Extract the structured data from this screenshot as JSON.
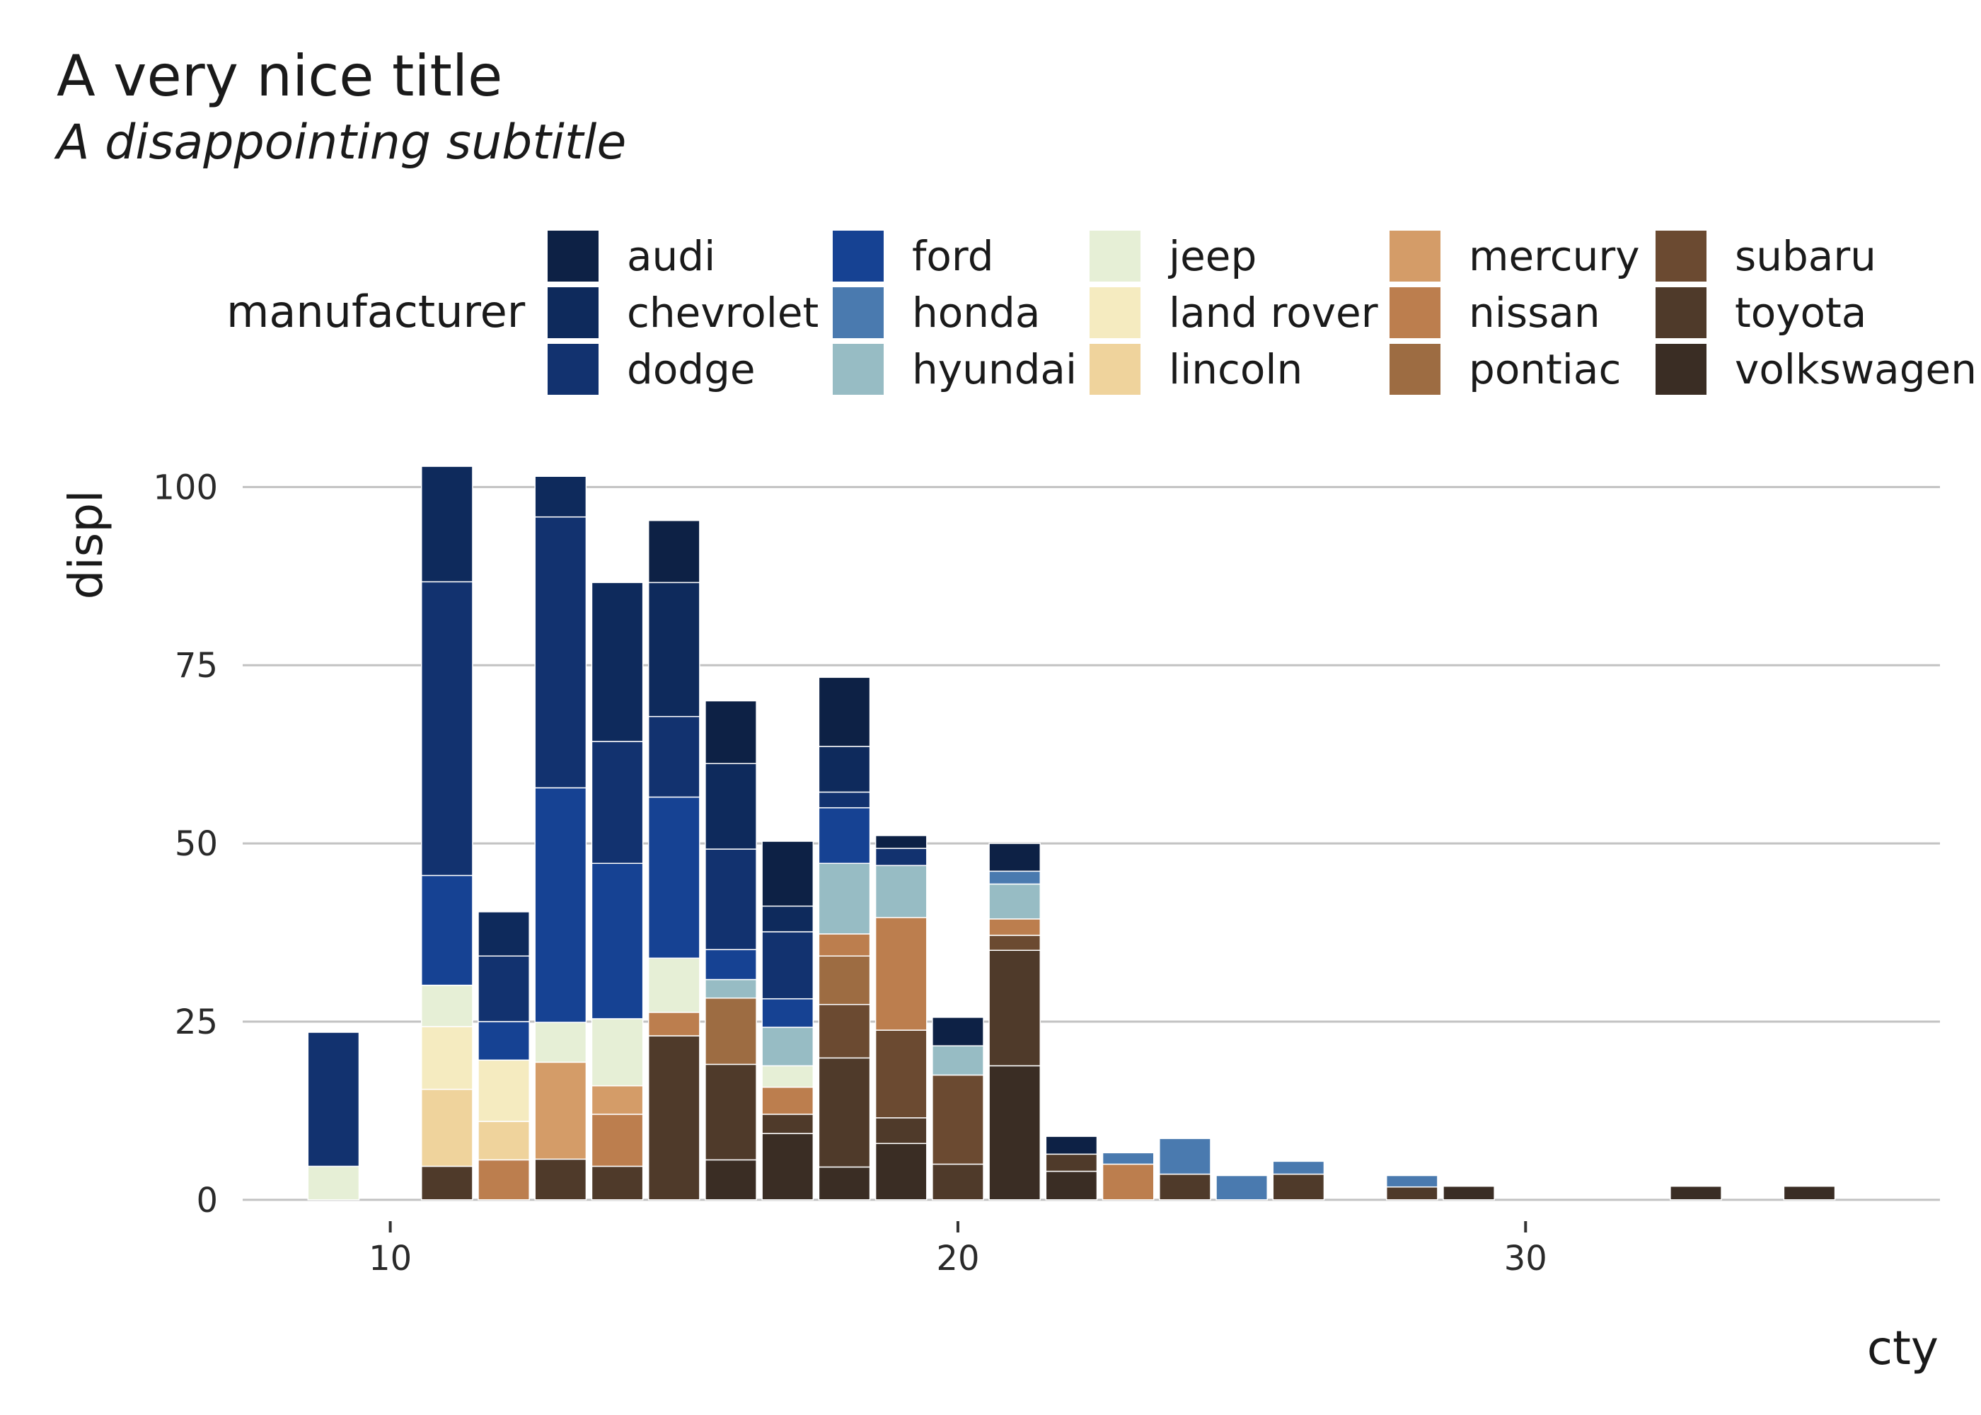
{
  "chart_data": {
    "type": "bar",
    "stacked": true,
    "title": "A very nice title",
    "subtitle": "A disappointing subtitle",
    "xlabel": "cty",
    "ylabel": "displ",
    "xlim": [
      7.4,
      37.3
    ],
    "ylim": [
      -2.5,
      104.5
    ],
    "xticks": [
      10,
      20,
      30
    ],
    "yticks": [
      0,
      25,
      50,
      75,
      100
    ],
    "bar_width": 0.9,
    "grid": "horizontal-major",
    "legend": {
      "title": "manufacturer",
      "placement": "top",
      "columns": 5,
      "entries": [
        {
          "name": "audi",
          "color": "#0d2145"
        },
        {
          "name": "chevrolet",
          "color": "#0e2a5c"
        },
        {
          "name": "dodge",
          "color": "#12326f"
        },
        {
          "name": "ford",
          "color": "#164293"
        },
        {
          "name": "honda",
          "color": "#4a7aaf"
        },
        {
          "name": "hyundai",
          "color": "#97bcc4"
        },
        {
          "name": "jeep",
          "color": "#e6efd6"
        },
        {
          "name": "land rover",
          "color": "#f5ebc0"
        },
        {
          "name": "lincoln",
          "color": "#efd39c"
        },
        {
          "name": "mercury",
          "color": "#d49c68"
        },
        {
          "name": "nissan",
          "color": "#bc7e4e"
        },
        {
          "name": "pontiac",
          "color": "#9d6c42"
        },
        {
          "name": "subaru",
          "color": "#6b4a31"
        },
        {
          "name": "toyota",
          "color": "#4f3a2a"
        },
        {
          "name": "volkswagen",
          "color": "#3a2d24"
        }
      ]
    },
    "bars": [
      {
        "x": 9,
        "segments": [
          {
            "m": "jeep",
            "value": 4.7
          },
          {
            "m": "dodge",
            "value": 18.8
          }
        ]
      },
      {
        "x": 11,
        "segments": [
          {
            "m": "toyota",
            "value": 4.7
          },
          {
            "m": "lincoln",
            "value": 10.8
          },
          {
            "m": "land rover",
            "value": 8.8
          },
          {
            "m": "jeep",
            "value": 5.8
          },
          {
            "m": "ford",
            "value": 15.4
          },
          {
            "m": "dodge",
            "value": 41.2
          },
          {
            "m": "chevrolet",
            "value": 16.2
          }
        ]
      },
      {
        "x": 12,
        "segments": [
          {
            "m": "nissan",
            "value": 5.6
          },
          {
            "m": "lincoln",
            "value": 5.4
          },
          {
            "m": "land rover",
            "value": 8.6
          },
          {
            "m": "ford",
            "value": 5.4
          },
          {
            "m": "dodge",
            "value": 9.2
          },
          {
            "m": "chevrolet",
            "value": 6.2
          }
        ]
      },
      {
        "x": 13,
        "segments": [
          {
            "m": "toyota",
            "value": 5.7
          },
          {
            "m": "mercury",
            "value": 13.6
          },
          {
            "m": "jeep",
            "value": 5.6
          },
          {
            "m": "ford",
            "value": 32.9
          },
          {
            "m": "dodge",
            "value": 38.0
          },
          {
            "m": "chevrolet",
            "value": 5.7
          }
        ]
      },
      {
        "x": 14,
        "segments": [
          {
            "m": "toyota",
            "value": 4.7
          },
          {
            "m": "nissan",
            "value": 7.3
          },
          {
            "m": "mercury",
            "value": 4.0
          },
          {
            "m": "jeep",
            "value": 9.4
          },
          {
            "m": "ford",
            "value": 21.8
          },
          {
            "m": "dodge",
            "value": 17.1
          },
          {
            "m": "chevrolet",
            "value": 22.3
          }
        ]
      },
      {
        "x": 15,
        "segments": [
          {
            "m": "toyota",
            "value": 23.0
          },
          {
            "m": "nissan",
            "value": 3.3
          },
          {
            "m": "jeep",
            "value": 7.6
          },
          {
            "m": "ford",
            "value": 22.6
          },
          {
            "m": "dodge",
            "value": 11.3
          },
          {
            "m": "chevrolet",
            "value": 18.8
          },
          {
            "m": "audi",
            "value": 8.7
          }
        ]
      },
      {
        "x": 16,
        "segments": [
          {
            "m": "volkswagen",
            "value": 5.6
          },
          {
            "m": "toyota",
            "value": 13.4
          },
          {
            "m": "pontiac",
            "value": 9.3
          },
          {
            "m": "hyundai",
            "value": 2.6
          },
          {
            "m": "ford",
            "value": 4.2
          },
          {
            "m": "dodge",
            "value": 14.1
          },
          {
            "m": "chevrolet",
            "value": 12.0
          },
          {
            "m": "audi",
            "value": 8.8
          }
        ]
      },
      {
        "x": 17,
        "segments": [
          {
            "m": "volkswagen",
            "value": 9.3
          },
          {
            "m": "toyota",
            "value": 2.7
          },
          {
            "m": "nissan",
            "value": 3.8
          },
          {
            "m": "jeep",
            "value": 3.0
          },
          {
            "m": "hyundai",
            "value": 5.4
          },
          {
            "m": "ford",
            "value": 4.0
          },
          {
            "m": "dodge",
            "value": 9.4
          },
          {
            "m": "chevrolet",
            "value": 3.6
          },
          {
            "m": "audi",
            "value": 9.1
          }
        ]
      },
      {
        "x": 18,
        "segments": [
          {
            "m": "volkswagen",
            "value": 4.6
          },
          {
            "m": "toyota",
            "value": 15.3
          },
          {
            "m": "subaru",
            "value": 7.5
          },
          {
            "m": "pontiac",
            "value": 6.8
          },
          {
            "m": "nissan",
            "value": 3.1
          },
          {
            "m": "hyundai",
            "value": 9.9
          },
          {
            "m": "ford",
            "value": 7.8
          },
          {
            "m": "dodge",
            "value": 2.2
          },
          {
            "m": "chevrolet",
            "value": 6.4
          },
          {
            "m": "audi",
            "value": 9.7
          }
        ]
      },
      {
        "x": 19,
        "segments": [
          {
            "m": "volkswagen",
            "value": 7.9
          },
          {
            "m": "toyota",
            "value": 3.6
          },
          {
            "m": "subaru",
            "value": 12.3
          },
          {
            "m": "nissan",
            "value": 15.8
          },
          {
            "m": "hyundai",
            "value": 7.3
          },
          {
            "m": "dodge",
            "value": 2.4
          },
          {
            "m": "audi",
            "value": 1.8
          }
        ]
      },
      {
        "x": 20,
        "segments": [
          {
            "m": "toyota",
            "value": 5.0
          },
          {
            "m": "subaru",
            "value": 12.5
          },
          {
            "m": "hyundai",
            "value": 4.1
          },
          {
            "m": "audi",
            "value": 4.0
          }
        ]
      },
      {
        "x": 21,
        "segments": [
          {
            "m": "volkswagen",
            "value": 18.8
          },
          {
            "m": "toyota",
            "value": 16.2
          },
          {
            "m": "subaru",
            "value": 2.1
          },
          {
            "m": "nissan",
            "value": 2.3
          },
          {
            "m": "hyundai",
            "value": 4.9
          },
          {
            "m": "honda",
            "value": 1.8
          },
          {
            "m": "audi",
            "value": 3.9
          }
        ]
      },
      {
        "x": 22,
        "segments": [
          {
            "m": "volkswagen",
            "value": 4.0
          },
          {
            "m": "toyota",
            "value": 2.4
          },
          {
            "m": "audi",
            "value": 2.5
          }
        ]
      },
      {
        "x": 23,
        "segments": [
          {
            "m": "nissan",
            "value": 5.0
          },
          {
            "m": "honda",
            "value": 1.6
          }
        ]
      },
      {
        "x": 24,
        "segments": [
          {
            "m": "toyota",
            "value": 3.6
          },
          {
            "m": "honda",
            "value": 5.0
          }
        ]
      },
      {
        "x": 25,
        "segments": [
          {
            "m": "honda",
            "value": 3.4
          }
        ]
      },
      {
        "x": 26,
        "segments": [
          {
            "m": "toyota",
            "value": 3.6
          },
          {
            "m": "honda",
            "value": 1.8
          }
        ]
      },
      {
        "x": 28,
        "segments": [
          {
            "m": "toyota",
            "value": 1.8
          },
          {
            "m": "honda",
            "value": 1.6
          }
        ]
      },
      {
        "x": 29,
        "segments": [
          {
            "m": "volkswagen",
            "value": 1.9
          }
        ]
      },
      {
        "x": 33,
        "segments": [
          {
            "m": "volkswagen",
            "value": 1.9
          }
        ]
      },
      {
        "x": 35,
        "segments": [
          {
            "m": "volkswagen",
            "value": 1.9
          }
        ]
      }
    ]
  }
}
